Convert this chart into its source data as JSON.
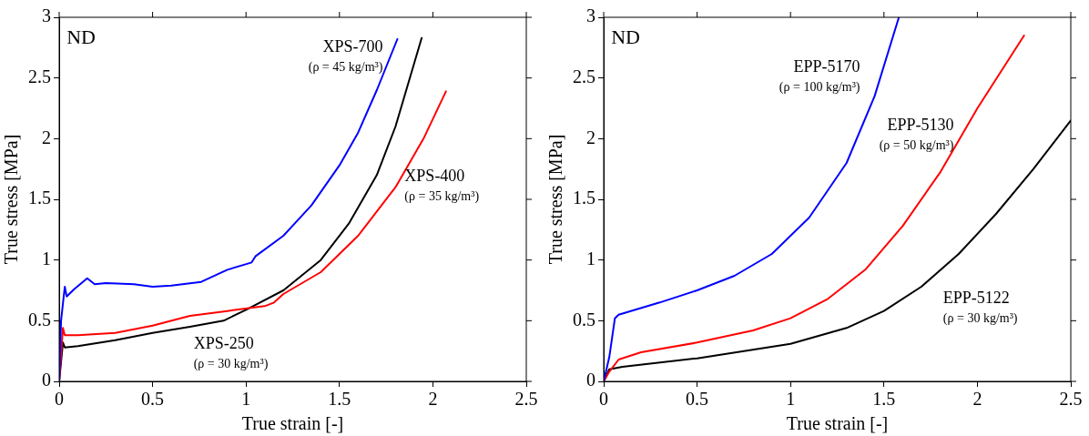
{
  "chart_data": [
    {
      "type": "line",
      "xlabel": "True strain [-]",
      "ylabel": "True stress [MPa]",
      "xlim": [
        0,
        2.5
      ],
      "ylim": [
        0,
        3
      ],
      "xticks": [
        0,
        0.5,
        1,
        1.5,
        2,
        2.5
      ],
      "yticks": [
        0,
        0.5,
        1,
        1.5,
        2,
        2.5,
        3
      ],
      "grid": false,
      "legend": false,
      "marker": "none",
      "line_style": "solid",
      "annotations": [
        "ND",
        "(ρ = 45 kg/m³)",
        "(ρ = 35 kg/m³)",
        "(ρ = 30 kg/m³)"
      ],
      "series": [
        {
          "name": "XPS-700",
          "color": "#0000ff",
          "x": [
            0,
            0.01,
            0.03,
            0.04,
            0.08,
            0.15,
            0.19,
            0.25,
            0.4,
            0.5,
            0.6,
            0.76,
            0.9,
            1.03,
            1.05,
            1.2,
            1.35,
            1.5,
            1.6,
            1.7,
            1.81
          ],
          "values": [
            0,
            0.5,
            0.78,
            0.7,
            0.76,
            0.85,
            0.8,
            0.81,
            0.8,
            0.78,
            0.79,
            0.82,
            0.92,
            0.98,
            1.03,
            1.2,
            1.45,
            1.78,
            2.05,
            2.4,
            2.82
          ]
        },
        {
          "name": "XPS-400",
          "color": "#ff0000",
          "x": [
            0,
            0.02,
            0.03,
            0.1,
            0.3,
            0.5,
            0.7,
            0.9,
            1.1,
            1.15,
            1.2,
            1.4,
            1.6,
            1.8,
            1.95,
            2.07
          ],
          "values": [
            0,
            0.44,
            0.38,
            0.38,
            0.4,
            0.46,
            0.54,
            0.58,
            0.62,
            0.65,
            0.72,
            0.9,
            1.2,
            1.6,
            2.0,
            2.39
          ]
        },
        {
          "name": "XPS-250",
          "color": "#000000",
          "x": [
            0,
            0.02,
            0.03,
            0.1,
            0.3,
            0.5,
            0.7,
            0.88,
            1.0,
            1.2,
            1.4,
            1.55,
            1.7,
            1.8,
            1.94
          ],
          "values": [
            0,
            0.32,
            0.28,
            0.29,
            0.34,
            0.4,
            0.45,
            0.5,
            0.59,
            0.75,
            1.0,
            1.3,
            1.7,
            2.1,
            2.83
          ]
        }
      ]
    },
    {
      "type": "line",
      "xlabel": "True strain [-]",
      "ylabel": "True stress [MPa]",
      "xlim": [
        0,
        2.5
      ],
      "ylim": [
        0,
        3
      ],
      "xticks": [
        0,
        0.5,
        1,
        1.5,
        2,
        2.5
      ],
      "yticks": [
        0,
        0.5,
        1,
        1.5,
        2,
        2.5,
        3
      ],
      "grid": false,
      "legend": false,
      "marker": "none",
      "line_style": "solid",
      "annotations": [
        "ND",
        "(ρ = 100 kg/m³)",
        "(ρ = 50 kg/m³)",
        "(ρ = 30 kg/m³)"
      ],
      "series": [
        {
          "name": "EPP-5170",
          "color": "#0000ff",
          "x": [
            0,
            0.03,
            0.06,
            0.08,
            0.3,
            0.5,
            0.7,
            0.9,
            1.1,
            1.3,
            1.45,
            1.58
          ],
          "values": [
            0,
            0.2,
            0.52,
            0.55,
            0.65,
            0.75,
            0.87,
            1.05,
            1.35,
            1.8,
            2.35,
            3.0
          ]
        },
        {
          "name": "EPP-5130",
          "color": "#ff0000",
          "x": [
            0,
            0.03,
            0.08,
            0.2,
            0.5,
            0.8,
            1.0,
            1.2,
            1.4,
            1.6,
            1.8,
            2.0,
            2.25
          ],
          "values": [
            0,
            0.08,
            0.18,
            0.24,
            0.32,
            0.42,
            0.52,
            0.68,
            0.92,
            1.28,
            1.72,
            2.25,
            2.85
          ]
        },
        {
          "name": "EPP-5122",
          "color": "#000000",
          "x": [
            0,
            0.03,
            0.1,
            0.5,
            1.0,
            1.3,
            1.5,
            1.7,
            1.9,
            2.1,
            2.3,
            2.5
          ],
          "values": [
            0,
            0.1,
            0.12,
            0.19,
            0.31,
            0.44,
            0.58,
            0.78,
            1.05,
            1.38,
            1.75,
            2.15
          ]
        }
      ]
    }
  ]
}
